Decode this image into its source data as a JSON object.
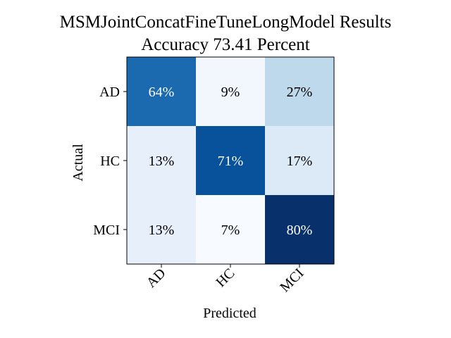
{
  "chart_data": {
    "type": "heatmap",
    "title": "MSMJointConcatFineTuneLongModel Results",
    "subtitle": "Accuracy 73.41 Percent",
    "xlabel": "Predicted",
    "ylabel": "Actual",
    "x_categories": [
      "AD",
      "HC",
      "MCI"
    ],
    "y_categories": [
      "AD",
      "HC",
      "MCI"
    ],
    "values": [
      [
        64,
        9,
        27
      ],
      [
        13,
        71,
        17
      ],
      [
        13,
        7,
        80
      ]
    ],
    "cell_labels": [
      [
        "64%",
        "9%",
        "27%"
      ],
      [
        "13%",
        "71%",
        "17%"
      ],
      [
        "13%",
        "7%",
        "80%"
      ]
    ],
    "colormap": "Blues",
    "colors": {
      "low": "#f7fbff",
      "high": "#08306b",
      "text_dark": "#000000",
      "text_light": "#ffffff"
    },
    "grid": false
  }
}
